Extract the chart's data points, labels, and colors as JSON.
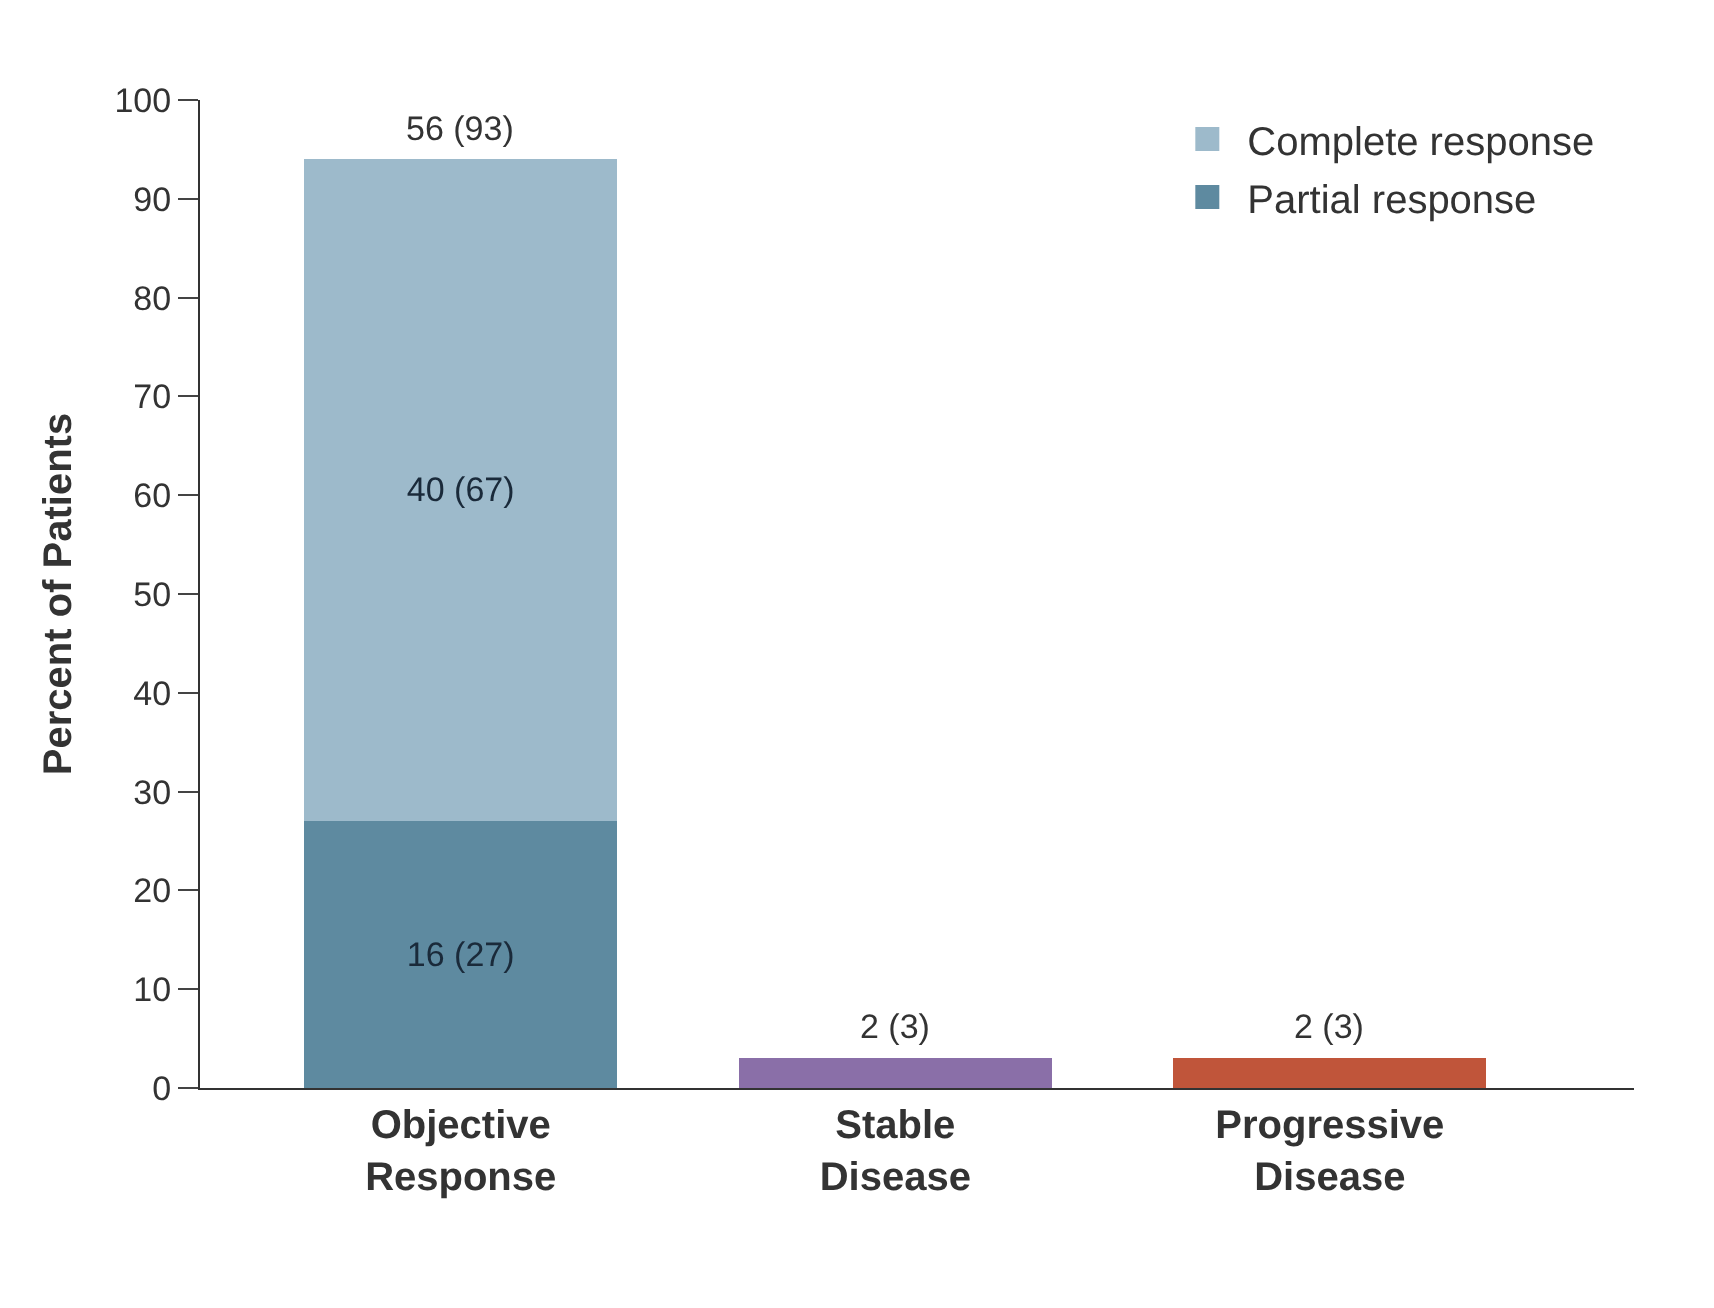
{
  "chart_data": {
    "type": "bar",
    "stacked": true,
    "ylabel": "Percent of Patients",
    "categories": [
      "Objective\nResponse",
      "Stable\nDisease",
      "Progressive\nDisease"
    ],
    "series": [
      {
        "name": "Partial response",
        "color": "#5e8aa0",
        "values": [
          27,
          null,
          null
        ],
        "value_labels": [
          "16 (27)",
          null,
          null
        ]
      },
      {
        "name": "Complete response",
        "color": "#9dbacb",
        "values": [
          67,
          null,
          null
        ],
        "value_labels": [
          "40 (67)",
          null,
          null
        ]
      },
      {
        "colors": [
          "#9dbacb",
          "#8a6fa8",
          "#c0553a"
        ],
        "values": [
          null,
          3,
          3
        ]
      }
    ],
    "totals": [
      "56 (93)",
      "2 (3)",
      "2 (3)"
    ],
    "ylim": [
      0,
      100
    ],
    "yticks": [
      0,
      10,
      20,
      30,
      40,
      50,
      60,
      70,
      80,
      90,
      100
    ],
    "legend": "top right"
  }
}
